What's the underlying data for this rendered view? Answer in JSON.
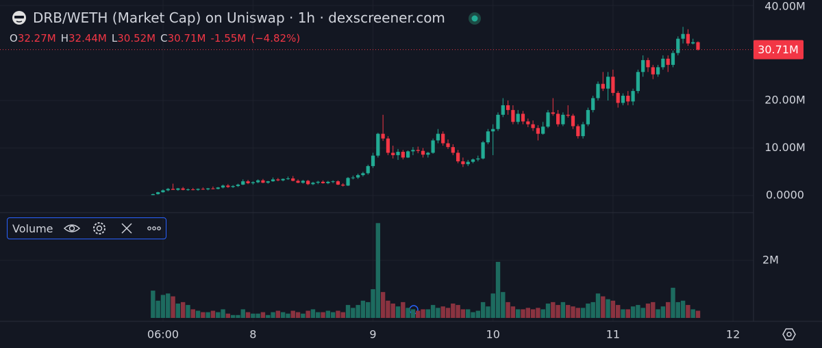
{
  "chart_data": {
    "type": "candlestick",
    "title": "DRB/WETH (Market Cap) on Uniswap · 1h · dexscreener.com",
    "ohlc": [
      {
        "name": "O",
        "value": 32.27,
        "label": "32.27M"
      },
      {
        "name": "H",
        "value": 32.44,
        "label": "32.44M"
      },
      {
        "name": "L",
        "value": 30.52,
        "label": "30.52M"
      },
      {
        "name": "C",
        "value": 30.71,
        "label": "30.71M"
      }
    ],
    "change": {
      "value": -1.55,
      "label": "-1.55M"
    },
    "change_pct": {
      "value": -4.82,
      "label": "(−4.82%)"
    },
    "last_price": {
      "value": 30.71,
      "label": "30.71M"
    },
    "volume_title": "Volume",
    "up_color": "#22ab94",
    "down_color": "#f23645",
    "volume_up_color": "#1d6b5f",
    "volume_down_color": "#8a3340",
    "grid": true,
    "xlim": [
      -26.6,
      124.1
    ],
    "xticks": [
      {
        "value": 6,
        "label": "06:00"
      },
      {
        "value": 24,
        "label": "8"
      },
      {
        "value": 48,
        "label": "9"
      },
      {
        "value": 72,
        "label": "10"
      },
      {
        "value": 96,
        "label": "11"
      },
      {
        "value": 120,
        "label": "12"
      }
    ],
    "ylim": [
      -3.45,
      41.15
    ],
    "yticks": [
      {
        "value": 0,
        "label": "0.0000"
      },
      {
        "value": 10,
        "label": "10.00M"
      },
      {
        "value": 20,
        "label": "20.00M"
      },
      {
        "value": 40,
        "label": "40.00M"
      }
    ],
    "volume_ylim": [
      0,
      3.64
    ],
    "volume_yticks": [
      {
        "value": 2,
        "label": "2M"
      }
    ],
    "x": [
      4,
      5,
      6,
      7,
      8,
      9,
      10,
      11,
      12,
      13,
      14,
      15,
      16,
      17,
      18,
      19,
      20,
      21,
      22,
      23,
      24,
      25,
      26,
      27,
      28,
      29,
      30,
      31,
      32,
      33,
      34,
      35,
      36,
      37,
      38,
      39,
      40,
      41,
      42,
      43,
      44,
      45,
      46,
      47,
      48,
      49,
      50,
      51,
      52,
      53,
      54,
      55,
      56,
      57,
      58,
      59,
      60,
      61,
      62,
      63,
      64,
      65,
      66,
      67,
      68,
      69,
      70,
      71,
      72,
      73,
      74,
      75,
      76,
      77,
      78,
      79,
      80,
      81,
      82,
      83,
      84,
      85,
      86,
      87,
      88,
      89,
      90,
      91,
      92,
      93,
      94,
      95,
      96,
      97,
      98,
      99,
      100,
      101,
      102,
      103,
      104,
      105,
      106,
      107,
      108,
      109,
      110,
      111,
      112,
      113
    ],
    "candles": [
      [
        0.1,
        0.4,
        0.1,
        0.3
      ],
      [
        0.3,
        0.8,
        0.2,
        0.7
      ],
      [
        0.7,
        1.3,
        0.6,
        1.1
      ],
      [
        1.1,
        1.6,
        0.9,
        1.4
      ],
      [
        1.4,
        2.5,
        1.2,
        1.2
      ],
      [
        1.2,
        1.6,
        1.0,
        1.5
      ],
      [
        1.5,
        1.8,
        1.1,
        1.2
      ],
      [
        1.2,
        1.5,
        1.0,
        1.3
      ],
      [
        1.3,
        1.6,
        1.1,
        1.2
      ],
      [
        1.2,
        1.5,
        1.0,
        1.4
      ],
      [
        1.4,
        1.7,
        1.2,
        1.3
      ],
      [
        1.3,
        1.6,
        1.1,
        1.5
      ],
      [
        1.5,
        1.9,
        1.3,
        1.4
      ],
      [
        1.4,
        1.8,
        1.3,
        1.7
      ],
      [
        1.7,
        2.3,
        1.5,
        2.1
      ],
      [
        2.1,
        2.4,
        1.6,
        1.8
      ],
      [
        1.8,
        2.2,
        1.6,
        2.0
      ],
      [
        2.0,
        2.5,
        1.8,
        2.3
      ],
      [
        2.3,
        3.4,
        2.2,
        3.0
      ],
      [
        3.0,
        3.3,
        2.4,
        2.6
      ],
      [
        2.6,
        3.0,
        2.3,
        2.8
      ],
      [
        2.8,
        3.4,
        2.6,
        3.2
      ],
      [
        3.2,
        3.5,
        2.6,
        2.7
      ],
      [
        2.7,
        3.1,
        2.5,
        3.0
      ],
      [
        3.0,
        3.8,
        2.9,
        3.4
      ],
      [
        3.4,
        3.7,
        3.0,
        3.2
      ],
      [
        3.2,
        3.6,
        3.0,
        3.5
      ],
      [
        3.5,
        4.0,
        3.3,
        3.6
      ],
      [
        3.6,
        4.1,
        3.0,
        3.1
      ],
      [
        3.1,
        3.4,
        2.6,
        2.7
      ],
      [
        2.7,
        3.3,
        2.5,
        3.1
      ],
      [
        3.1,
        3.3,
        2.2,
        2.4
      ],
      [
        2.4,
        2.9,
        2.2,
        2.7
      ],
      [
        2.7,
        3.1,
        2.4,
        2.9
      ],
      [
        2.9,
        3.2,
        2.5,
        2.6
      ],
      [
        2.6,
        3.1,
        2.4,
        2.9
      ],
      [
        2.9,
        3.2,
        2.6,
        3.0
      ],
      [
        3.0,
        3.2,
        2.2,
        2.3
      ],
      [
        2.3,
        2.6,
        1.9,
        2.1
      ],
      [
        2.1,
        3.9,
        2.0,
        3.7
      ],
      [
        3.7,
        4.2,
        3.4,
        3.8
      ],
      [
        3.8,
        4.6,
        3.5,
        4.3
      ],
      [
        4.3,
        5.0,
        4.0,
        4.7
      ],
      [
        4.7,
        6.5,
        4.4,
        6.2
      ],
      [
        6.2,
        9.0,
        5.8,
        8.4
      ],
      [
        8.4,
        13.2,
        8.0,
        13.0
      ],
      [
        13.0,
        17.0,
        11.5,
        12.0
      ],
      [
        12.0,
        12.5,
        8.5,
        9.0
      ],
      [
        9.0,
        10.5,
        7.8,
        8.5
      ],
      [
        8.5,
        9.8,
        7.5,
        9.2
      ],
      [
        9.2,
        9.6,
        7.6,
        8.0
      ],
      [
        8.0,
        9.5,
        7.9,
        9.3
      ],
      [
        9.3,
        10.2,
        8.5,
        9.6
      ],
      [
        9.6,
        10.3,
        8.9,
        9.4
      ],
      [
        9.4,
        10.0,
        8.0,
        8.6
      ],
      [
        8.6,
        9.2,
        8.0,
        9.0
      ],
      [
        9.0,
        12.0,
        8.8,
        11.6
      ],
      [
        11.6,
        14.0,
        11.0,
        13.0
      ],
      [
        13.0,
        13.5,
        10.5,
        11.0
      ],
      [
        11.0,
        11.8,
        9.8,
        10.2
      ],
      [
        10.2,
        10.8,
        8.5,
        9.0
      ],
      [
        9.0,
        9.6,
        6.8,
        7.2
      ],
      [
        7.2,
        8.0,
        6.0,
        6.6
      ],
      [
        6.6,
        7.5,
        6.2,
        7.1
      ],
      [
        7.1,
        7.8,
        6.8,
        7.6
      ],
      [
        7.6,
        8.4,
        7.2,
        7.8
      ],
      [
        7.8,
        11.5,
        7.6,
        11.2
      ],
      [
        11.2,
        14.0,
        10.8,
        13.5
      ],
      [
        13.5,
        15.0,
        8.5,
        14.0
      ],
      [
        14.0,
        17.5,
        13.6,
        17.0
      ],
      [
        17.0,
        20.5,
        16.5,
        19.0
      ],
      [
        19.0,
        20.0,
        17.0,
        18.0
      ],
      [
        18.0,
        19.0,
        15.0,
        15.5
      ],
      [
        15.5,
        18.0,
        15.0,
        17.2
      ],
      [
        17.2,
        17.8,
        15.0,
        15.6
      ],
      [
        15.6,
        16.2,
        14.4,
        15.0
      ],
      [
        15.0,
        15.8,
        13.6,
        14.2
      ],
      [
        14.2,
        14.8,
        11.6,
        13.0
      ],
      [
        13.0,
        15.5,
        12.8,
        14.5
      ],
      [
        14.5,
        18.0,
        14.2,
        17.5
      ],
      [
        17.5,
        20.5,
        16.8,
        17.2
      ],
      [
        17.2,
        18.0,
        14.5,
        15.0
      ],
      [
        15.0,
        17.5,
        14.6,
        17.0
      ],
      [
        17.0,
        19.0,
        16.4,
        16.8
      ],
      [
        16.8,
        17.2,
        14.0,
        14.6
      ],
      [
        14.6,
        15.0,
        12.0,
        12.5
      ],
      [
        12.5,
        15.5,
        12.0,
        15.0
      ],
      [
        15.0,
        18.5,
        14.6,
        18.0
      ],
      [
        18.0,
        21.0,
        17.5,
        20.5
      ],
      [
        20.5,
        24.0,
        20.0,
        23.5
      ],
      [
        23.5,
        26.0,
        22.0,
        22.5
      ],
      [
        22.5,
        26.0,
        20.0,
        25.0
      ],
      [
        25.0,
        26.5,
        21.0,
        21.6
      ],
      [
        21.6,
        22.0,
        18.5,
        19.5
      ],
      [
        19.5,
        21.5,
        19.0,
        21.0
      ],
      [
        21.0,
        22.0,
        19.0,
        19.8
      ],
      [
        19.8,
        22.5,
        19.0,
        22.0
      ],
      [
        22.0,
        26.5,
        21.5,
        26.0
      ],
      [
        26.0,
        29.5,
        25.0,
        28.5
      ],
      [
        28.5,
        29.0,
        26.0,
        27.0
      ],
      [
        27.0,
        27.5,
        24.5,
        25.5
      ],
      [
        25.5,
        27.5,
        25.0,
        27.0
      ],
      [
        27.0,
        29.5,
        26.5,
        28.8
      ],
      [
        28.8,
        29.5,
        26.0,
        27.5
      ],
      [
        27.5,
        30.5,
        27.0,
        30.0
      ],
      [
        30.0,
        33.5,
        29.5,
        33.0
      ],
      [
        33.0,
        35.5,
        32.0,
        34.0
      ],
      [
        34.0,
        35.0,
        31.5,
        32.0
      ],
      [
        32.0,
        33.0,
        31.8,
        32.27
      ],
      [
        32.27,
        32.44,
        30.52,
        30.71
      ]
    ],
    "volume": [
      0.95,
      0.6,
      0.8,
      0.85,
      0.75,
      0.5,
      0.55,
      0.45,
      0.3,
      0.25,
      0.2,
      0.2,
      0.25,
      0.2,
      0.3,
      0.15,
      0.1,
      0.1,
      0.3,
      0.2,
      0.15,
      0.15,
      0.2,
      0.1,
      0.2,
      0.25,
      0.2,
      0.15,
      0.25,
      0.2,
      0.15,
      0.25,
      0.3,
      0.2,
      0.2,
      0.25,
      0.2,
      0.25,
      0.2,
      0.45,
      0.35,
      0.45,
      0.6,
      0.55,
      1.0,
      3.3,
      0.9,
      0.6,
      0.5,
      0.4,
      0.55,
      0.35,
      0.3,
      0.25,
      0.3,
      0.3,
      0.45,
      0.35,
      0.4,
      0.35,
      0.5,
      0.45,
      0.3,
      0.3,
      0.2,
      0.25,
      0.55,
      0.4,
      0.85,
      1.95,
      0.9,
      0.55,
      0.4,
      0.3,
      0.3,
      0.35,
      0.3,
      0.35,
      0.3,
      0.5,
      0.55,
      0.45,
      0.55,
      0.45,
      0.4,
      0.35,
      0.35,
      0.5,
      0.55,
      0.85,
      0.75,
      0.65,
      0.6,
      0.45,
      0.3,
      0.3,
      0.4,
      0.45,
      0.35,
      0.5,
      0.55,
      0.3,
      0.4,
      0.55,
      1.05,
      0.55,
      0.6,
      0.45,
      0.3,
      0.25
    ]
  }
}
